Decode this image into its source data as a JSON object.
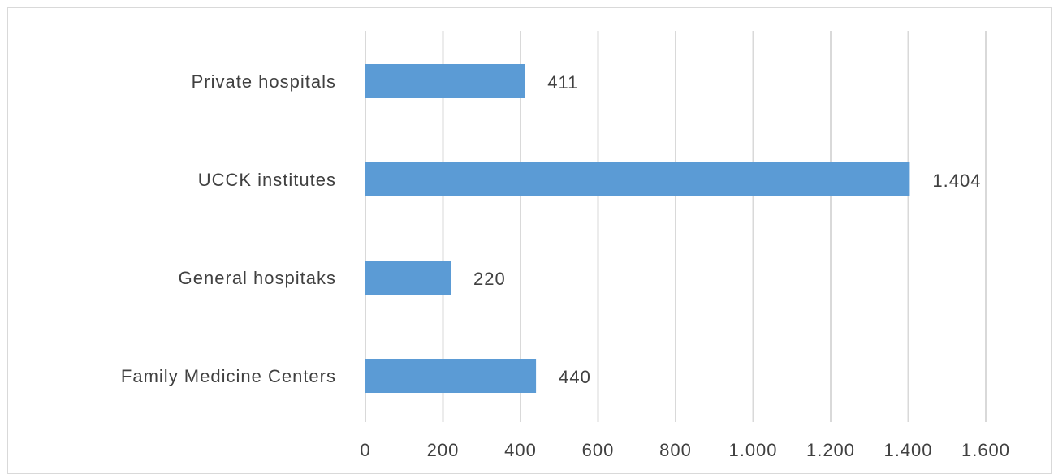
{
  "chart_data": {
    "type": "bar",
    "orientation": "horizontal",
    "categories": [
      "Private hospitals",
      "UCCK institutes",
      "General hospitaks",
      "Family Medicine Centers"
    ],
    "values": [
      411,
      1404,
      220,
      440
    ],
    "value_labels": [
      "411",
      "1.404",
      "220",
      "440"
    ],
    "xlim": [
      0,
      1600
    ],
    "xticks": [
      0,
      200,
      400,
      600,
      800,
      1000,
      1200,
      1400,
      1600
    ],
    "xtick_labels": [
      "0",
      "200",
      "400",
      "600",
      "800",
      "1.000",
      "1.200",
      "1.400",
      "1.600"
    ],
    "bar_color": "#5b9bd5",
    "grid": true,
    "grid_color": "#d9d9d9",
    "title": "",
    "xlabel": "",
    "ylabel": "",
    "legend": "none"
  }
}
